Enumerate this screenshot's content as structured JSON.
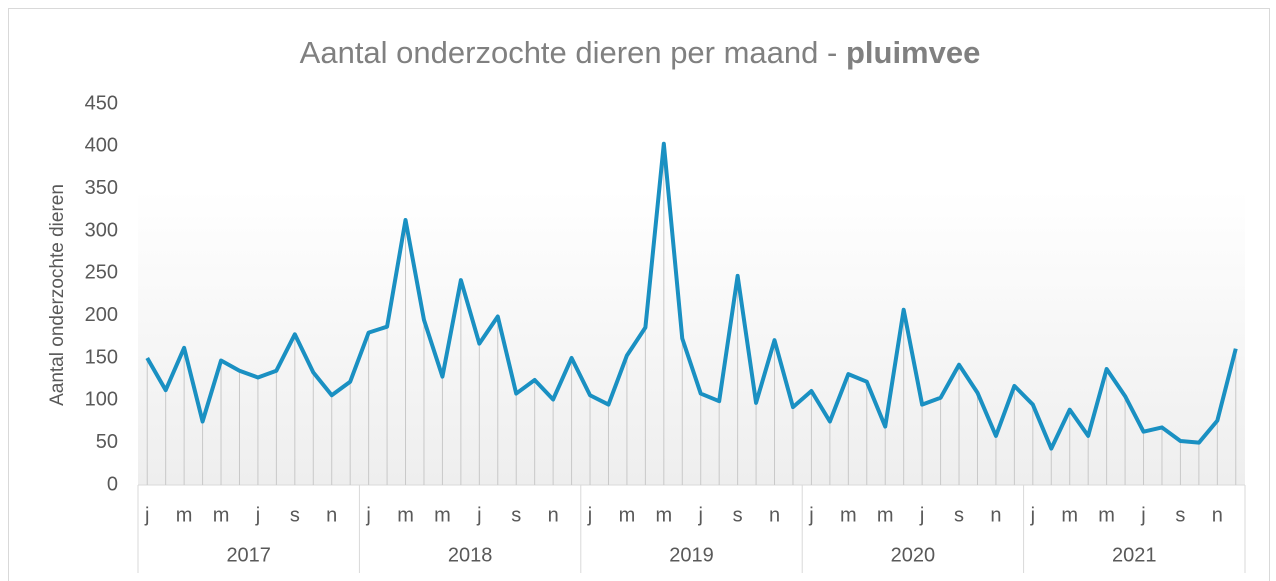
{
  "chart_data": {
    "type": "line",
    "title": "Aantal onderzochte dieren per maand - ",
    "title_bold": "pluimvee",
    "y_label": "Aantal onderzochte dieren",
    "categories": [
      "j",
      null,
      "m",
      null,
      "m",
      null,
      "j",
      null,
      "s",
      null,
      "n",
      null,
      "j",
      null,
      "m",
      null,
      "m",
      null,
      "j",
      null,
      "s",
      null,
      "n",
      null,
      "j",
      null,
      "m",
      null,
      "m",
      null,
      "j",
      null,
      "s",
      null,
      "n",
      null,
      "j",
      null,
      "m",
      null,
      "m",
      null,
      "j",
      null,
      "s",
      null,
      "n",
      null,
      "j",
      null,
      "m",
      null,
      "m",
      null,
      "j",
      null,
      "s",
      null,
      "n",
      null
    ],
    "years": [
      "2017",
      "2018",
      "2019",
      "2020",
      "2021"
    ],
    "series": [
      {
        "name": "pluimvee",
        "color": "#1a90c2",
        "values": [
          150,
          112,
          162,
          75,
          147,
          135,
          127,
          135,
          178,
          133,
          106,
          122,
          180,
          187,
          313,
          195,
          128,
          242,
          167,
          199,
          108,
          124,
          101,
          150,
          106,
          95,
          153,
          186,
          403,
          173,
          108,
          99,
          247,
          97,
          171,
          92,
          111,
          75,
          131,
          122,
          69,
          207,
          95,
          103,
          142,
          109,
          58,
          117,
          95,
          43,
          89,
          58,
          137,
          105,
          63,
          68,
          52,
          50,
          76,
          161
        ]
      }
    ],
    "ylim": [
      0,
      450
    ],
    "yticks": [
      0,
      50,
      100,
      150,
      200,
      250,
      300,
      350,
      400,
      450
    ],
    "drop_lines": true
  }
}
